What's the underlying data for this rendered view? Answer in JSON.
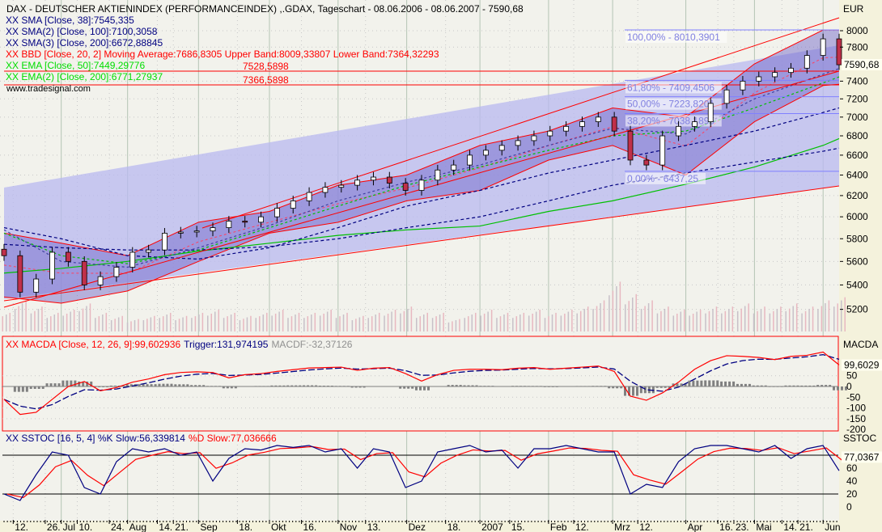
{
  "header": {
    "title": "DAX  - DEUTSCHER AKTIENINDEX (PERFORMANCEINDEX) ,.GDAX, Tageschart - 08.06.2006 - 08.06.2007 - 7590,68",
    "watermark": "www.tradesignal.com"
  },
  "legend": [
    {
      "text": "XX SMA [Close, 38]:7545,335",
      "color": "#000080"
    },
    {
      "text": "XX SMA(2) [Close, 100]:7100,3058",
      "color": "#000080"
    },
    {
      "text": "XX SMA(3) [Close, 200]:6672,88845",
      "color": "#000080"
    },
    {
      "text": "XX BBD [Close, 20, 2] Moving Average:7686,8305 Upper Band:8009,33807 Lower Band:7364,32293",
      "color": "#ff0000"
    },
    {
      "text": "XX EMA [Close, 50]:7449,29776",
      "color": "#00dd00"
    },
    {
      "text": "XX EMA(2) [Close, 200]:6771,27937",
      "color": "#00dd00"
    }
  ],
  "line_labels": [
    "7528,5898",
    "7366,5898"
  ],
  "colors": {
    "bull": "#ffffff",
    "bear": "#c0304a",
    "bollinger": "#ff0000",
    "sma": "#000080",
    "ema": "#00c000",
    "macd": "#ff0000",
    "trigger": "#000080",
    "histogram": "#808080",
    "channel": "#b8b8f0"
  },
  "chart_data": [
    {
      "type": "candlestick",
      "panel": "price",
      "axis_title": "EUR",
      "scale": "log",
      "ylim": [
        5050,
        8100
      ],
      "yticks": [
        8000,
        7800,
        7400,
        7200,
        7000,
        6800,
        6600,
        6400,
        6200,
        6000,
        5800,
        5600,
        5400,
        5200
      ],
      "last_value_label": "7590,68",
      "frequency": "weekly",
      "start_date": "2006-06-08",
      "end_date": "2007-06-08",
      "closes": [
        5650,
        5340,
        5450,
        5680,
        5600,
        5400,
        5470,
        5550,
        5680,
        5700,
        5850,
        5860,
        5870,
        5900,
        5960,
        5950,
        6000,
        6080,
        6150,
        6230,
        6280,
        6300,
        6350,
        6380,
        6320,
        6250,
        6350,
        6450,
        6500,
        6600,
        6650,
        6700,
        6750,
        6800,
        6850,
        6900,
        6950,
        7000,
        6850,
        6550,
        6500,
        6800,
        6900,
        6950,
        7150,
        7300,
        7400,
        7450,
        7500,
        7550,
        7700,
        7900,
        7590
      ],
      "volume_relative": [
        0.3,
        0.5,
        0.4,
        0.3,
        0.35,
        0.45,
        0.3,
        0.25,
        0.2,
        0.25,
        0.3,
        0.25,
        0.3,
        0.35,
        0.3,
        0.25,
        0.3,
        0.35,
        0.3,
        0.3,
        0.35,
        0.3,
        0.25,
        0.3,
        0.35,
        0.4,
        0.3,
        0.3,
        0.2,
        0.3,
        0.35,
        0.3,
        0.3,
        0.35,
        0.3,
        0.35,
        0.4,
        0.5,
        0.8,
        0.6,
        0.5,
        0.4,
        0.35,
        0.35,
        0.4,
        0.4,
        0.45,
        0.4,
        0.4,
        0.45,
        0.4,
        0.5,
        0.55
      ],
      "line_dates": [
        "2006-06-08",
        "2006-07-03",
        "2006-08-01",
        "2006-09-01",
        "2006-10-02",
        "2006-11-01",
        "2006-12-01",
        "2007-01-02",
        "2007-02-01",
        "2007-03-01",
        "2007-04-02",
        "2007-05-02",
        "2007-06-01",
        "2007-06-08"
      ],
      "lines": {
        "ema200": [
          5500,
          5540,
          5600,
          5690,
          5760,
          5830,
          5880,
          5915,
          6050,
          6150,
          6310,
          6480,
          6700,
          6771
        ],
        "sma200": [
          5750,
          5720,
          5700,
          5700,
          5730,
          5800,
          5900,
          6000,
          6150,
          6300,
          6420,
          6530,
          6640,
          6672
        ],
        "sma100": [
          5900,
          5800,
          5650,
          5620,
          5720,
          5900,
          6100,
          6250,
          6420,
          6550,
          6700,
          6850,
          7050,
          7100
        ],
        "ema50": [
          5850,
          5650,
          5580,
          5700,
          5900,
          6100,
          6300,
          6480,
          6650,
          6800,
          6850,
          7100,
          7380,
          7449
        ],
        "sma38": [
          5880,
          5600,
          5550,
          5720,
          5920,
          6150,
          6330,
          6500,
          6700,
          6880,
          6820,
          7200,
          7480,
          7545
        ],
        "bb_upper": [
          5850,
          5760,
          5650,
          5950,
          6050,
          6300,
          6400,
          6700,
          6850,
          7100,
          7000,
          7600,
          8009,
          8009
        ],
        "bb_lower": [
          5300,
          5250,
          5350,
          5600,
          5850,
          5950,
          6150,
          6250,
          6550,
          6700,
          6400,
          6950,
          7350,
          7364
        ]
      },
      "fibonacci": [
        {
          "label": "100,00% - 8010,3901",
          "value": 8010.3901
        },
        {
          "label": "61,80% - 7409,4506",
          "value": 7409.4506
        },
        {
          "label": "50,00% - 7223,8201",
          "value": 7223.8201
        },
        {
          "label": "38,20% - 7038,1895",
          "value": 7038.1895
        },
        {
          "label": "0,00% - 6437,25",
          "value": 6437.25
        }
      ]
    },
    {
      "type": "line",
      "panel": "macd",
      "title": "XX MACDA [Close, 12, 26, 9]:99,602936",
      "trigger_label": "Trigger:131,974195",
      "macdf_label": "MACDF:-32,37126",
      "axis_title": "MACDA",
      "last_value_label": "99,6029",
      "ylim": [
        -210,
        190
      ],
      "yticks": [
        50,
        0,
        -50,
        -100,
        -150,
        -200
      ],
      "macd": [
        -60,
        -130,
        -120,
        -60,
        0,
        23,
        -20,
        -5,
        20,
        35,
        55,
        65,
        68,
        65,
        40,
        55,
        60,
        70,
        78,
        86,
        88,
        90,
        75,
        85,
        88,
        60,
        25,
        55,
        75,
        80,
        80,
        78,
        85,
        88,
        80,
        85,
        90,
        95,
        70,
        -45,
        -64,
        -30,
        20,
        80,
        120,
        143,
        140,
        135,
        125,
        140,
        145,
        160,
        100
      ]
    },
    {
      "type": "line",
      "panel": "stochastic",
      "title": "XX SSTOC [16, 5, 4] %K Slow:56,339814",
      "d_label": "%D Slow:77,036666",
      "axis_title": "SSTOC",
      "last_value_label": "77,0367",
      "ylim": [
        -5,
        105
      ],
      "yticks": [
        60,
        40,
        20,
        0
      ],
      "levels": [
        80,
        20
      ],
      "k": [
        20,
        10,
        50,
        85,
        80,
        30,
        20,
        70,
        90,
        85,
        90,
        80,
        85,
        40,
        75,
        90,
        88,
        95,
        92,
        95,
        85,
        90,
        60,
        90,
        85,
        30,
        40,
        85,
        90,
        95,
        85,
        88,
        60,
        90,
        90,
        95,
        90,
        85,
        85,
        20,
        35,
        30,
        70,
        90,
        95,
        95,
        90,
        85,
        95,
        75,
        90,
        95,
        56
      ]
    }
  ],
  "time_axis": [
    {
      "label": "12.",
      "date": "2006-06-12"
    },
    {
      "label": "26.",
      "date": "2006-06-26"
    },
    {
      "label": "Jul",
      "date": "2006-07-03"
    },
    {
      "label": "10.",
      "date": "2006-07-10"
    },
    {
      "label": "24.",
      "date": "2006-07-24"
    },
    {
      "label": "Aug",
      "date": "2006-08-01"
    },
    {
      "label": "14.",
      "date": "2006-08-14"
    },
    {
      "label": "21.",
      "date": "2006-08-21"
    },
    {
      "label": "Sep",
      "date": "2006-09-01"
    },
    {
      "label": "18.",
      "date": "2006-09-18"
    },
    {
      "label": "Okt",
      "date": "2006-10-02"
    },
    {
      "label": "16.",
      "date": "2006-10-16"
    },
    {
      "label": "Nov",
      "date": "2006-11-01"
    },
    {
      "label": "13.",
      "date": "2006-11-13"
    },
    {
      "label": "Dez",
      "date": "2006-12-01"
    },
    {
      "label": "18.",
      "date": "2006-12-18"
    },
    {
      "label": "2007",
      "date": "2007-01-02"
    },
    {
      "label": "15.",
      "date": "2007-01-15"
    },
    {
      "label": "Feb",
      "date": "2007-02-01"
    },
    {
      "label": "12.",
      "date": "2007-02-12"
    },
    {
      "label": "Mrz",
      "date": "2007-03-01"
    },
    {
      "label": "12.",
      "date": "2007-03-12"
    },
    {
      "label": "Apr",
      "date": "2007-04-02"
    },
    {
      "label": "16.",
      "date": "2007-04-16"
    },
    {
      "label": "23.",
      "date": "2007-04-23"
    },
    {
      "label": "Mai",
      "date": "2007-05-02"
    },
    {
      "label": "14.",
      "date": "2007-05-14"
    },
    {
      "label": "21.",
      "date": "2007-05-21"
    },
    {
      "label": "Jun",
      "date": "2007-06-01"
    }
  ]
}
